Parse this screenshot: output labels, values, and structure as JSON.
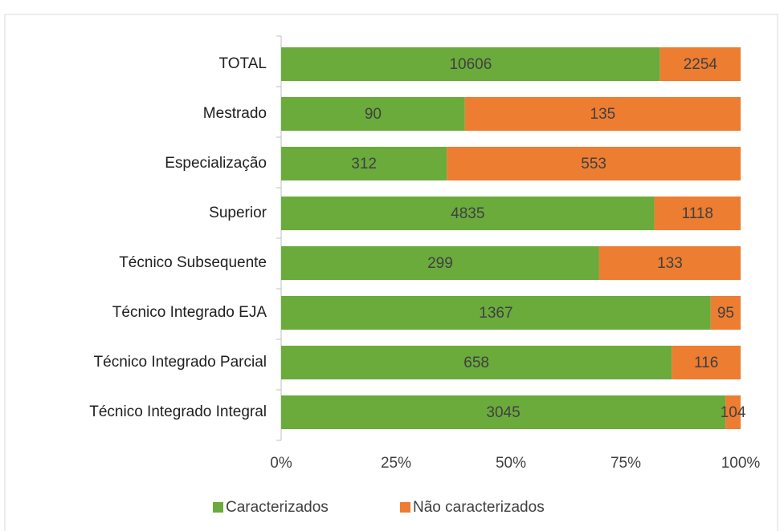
{
  "chart_data": {
    "type": "bar",
    "orientation": "horizontal",
    "stack": "percent",
    "categories": [
      "TOTAL",
      "Mestrado",
      "Especialização",
      "Superior",
      "Técnico Subsequente",
      "Técnico Integrado EJA",
      "Técnico Integrado Parcial",
      "Técnico Integrado Integral"
    ],
    "series": [
      {
        "name": "Caracterizados",
        "color": "#6aab3c",
        "values": [
          10606,
          90,
          312,
          4835,
          299,
          1367,
          658,
          3045
        ]
      },
      {
        "name": "Não caracterizados",
        "color": "#ed7d31",
        "values": [
          2254,
          135,
          553,
          1118,
          133,
          95,
          116,
          104
        ]
      }
    ],
    "xlim": [
      0,
      100
    ],
    "xticks": [
      {
        "value": 0,
        "label": "0%"
      },
      {
        "value": 25,
        "label": "25%"
      },
      {
        "value": 50,
        "label": "50%"
      },
      {
        "value": 75,
        "label": "75%"
      },
      {
        "value": 100,
        "label": "100%"
      }
    ],
    "legend": "bottom"
  }
}
